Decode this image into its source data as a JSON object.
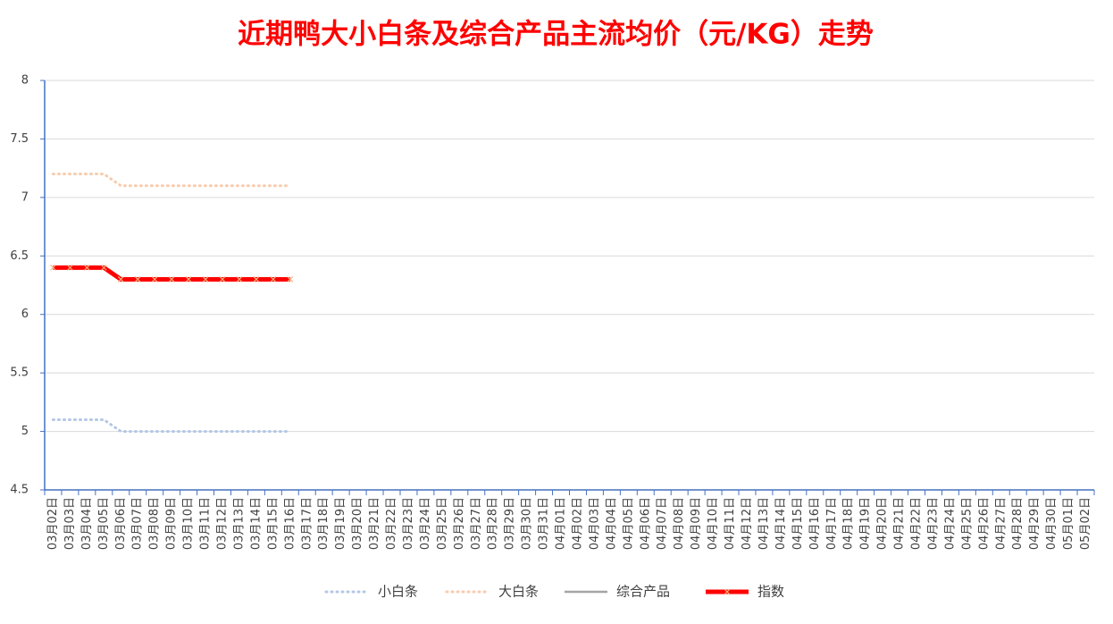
{
  "chart_data": {
    "type": "line",
    "title": "近期鸭大小白条及综合产品主流均价（元/KG）走势",
    "categories": [
      "03月02日",
      "03月03日",
      "03月04日",
      "03月05日",
      "03月06日",
      "03月07日",
      "03月08日",
      "03月09日",
      "03月10日",
      "03月11日",
      "03月12日",
      "03月13日",
      "03月14日",
      "03月15日",
      "03月16日",
      "03月17日",
      "03月18日",
      "03月19日",
      "03月20日",
      "03月21日",
      "03月22日",
      "03月23日",
      "03月24日",
      "03月25日",
      "03月26日",
      "03月27日",
      "03月28日",
      "03月29日",
      "03月30日",
      "03月31日",
      "04月01日",
      "04月02日",
      "04月03日",
      "04月04日",
      "04月05日",
      "04月06日",
      "04月07日",
      "04月08日",
      "04月09日",
      "04月10日",
      "04月11日",
      "04月12日",
      "04月13日",
      "04月14日",
      "04月15日",
      "04月16日",
      "04月17日",
      "04月18日",
      "04月19日",
      "04月20日",
      "04月21日",
      "04月22日",
      "04月23日",
      "04月24日",
      "04月25日",
      "04月26日",
      "04月27日",
      "04月28日",
      "04月29日",
      "04月30日",
      "05月01日",
      "05月02日"
    ],
    "series": [
      {
        "name": "小白条",
        "color": "#b4c7e7",
        "style": "dotted",
        "values": [
          5.1,
          5.1,
          5.1,
          5.1,
          5,
          5,
          5,
          5,
          5,
          5,
          5,
          5,
          5,
          5,
          5,
          null,
          null,
          null,
          null,
          null,
          null,
          null,
          null,
          null,
          null,
          null,
          null,
          null,
          null,
          null,
          null,
          null,
          null,
          null,
          null,
          null,
          null,
          null,
          null,
          null,
          null,
          null,
          null,
          null,
          null,
          null,
          null,
          null,
          null,
          null,
          null,
          null,
          null,
          null,
          null,
          null,
          null,
          null,
          null,
          null,
          null,
          null
        ]
      },
      {
        "name": "大白条",
        "color": "#f8cbad",
        "style": "dotted",
        "values": [
          7.2,
          7.2,
          7.2,
          7.2,
          7.1,
          7.1,
          7.1,
          7.1,
          7.1,
          7.1,
          7.1,
          7.1,
          7.1,
          7.1,
          7.1,
          null,
          null,
          null,
          null,
          null,
          null,
          null,
          null,
          null,
          null,
          null,
          null,
          null,
          null,
          null,
          null,
          null,
          null,
          null,
          null,
          null,
          null,
          null,
          null,
          null,
          null,
          null,
          null,
          null,
          null,
          null,
          null,
          null,
          null,
          null,
          null,
          null,
          null,
          null,
          null,
          null,
          null,
          null,
          null,
          null,
          null,
          null
        ]
      },
      {
        "name": "综合产品",
        "color": "#a5a5a5",
        "style": "solid",
        "values": [
          null,
          null,
          null,
          null,
          null,
          null,
          null,
          null,
          null,
          null,
          null,
          null,
          null,
          null,
          null,
          null,
          null,
          null,
          null,
          null,
          null,
          null,
          null,
          null,
          null,
          null,
          null,
          null,
          null,
          null,
          null,
          null,
          null,
          null,
          null,
          null,
          null,
          null,
          null,
          null,
          null,
          null,
          null,
          null,
          null,
          null,
          null,
          null,
          null,
          null,
          null,
          null,
          null,
          null,
          null,
          null,
          null,
          null,
          null,
          null,
          null,
          null
        ]
      },
      {
        "name": "指数",
        "color": "#ff0000",
        "style": "thick",
        "marker": "x",
        "marker_color": "#f4b183",
        "values": [
          6.4,
          6.4,
          6.4,
          6.4,
          6.3,
          6.3,
          6.3,
          6.3,
          6.3,
          6.3,
          6.3,
          6.3,
          6.3,
          6.3,
          6.3,
          null,
          null,
          null,
          null,
          null,
          null,
          null,
          null,
          null,
          null,
          null,
          null,
          null,
          null,
          null,
          null,
          null,
          null,
          null,
          null,
          null,
          null,
          null,
          null,
          null,
          null,
          null,
          null,
          null,
          null,
          null,
          null,
          null,
          null,
          null,
          null,
          null,
          null,
          null,
          null,
          null,
          null,
          null,
          null,
          null,
          null,
          null
        ]
      }
    ],
    "ylim": [
      4.5,
      8
    ],
    "yticks": [
      4.5,
      5,
      5.5,
      6,
      6.5,
      7,
      7.5,
      8
    ],
    "grid": true,
    "legend": "bottom"
  }
}
